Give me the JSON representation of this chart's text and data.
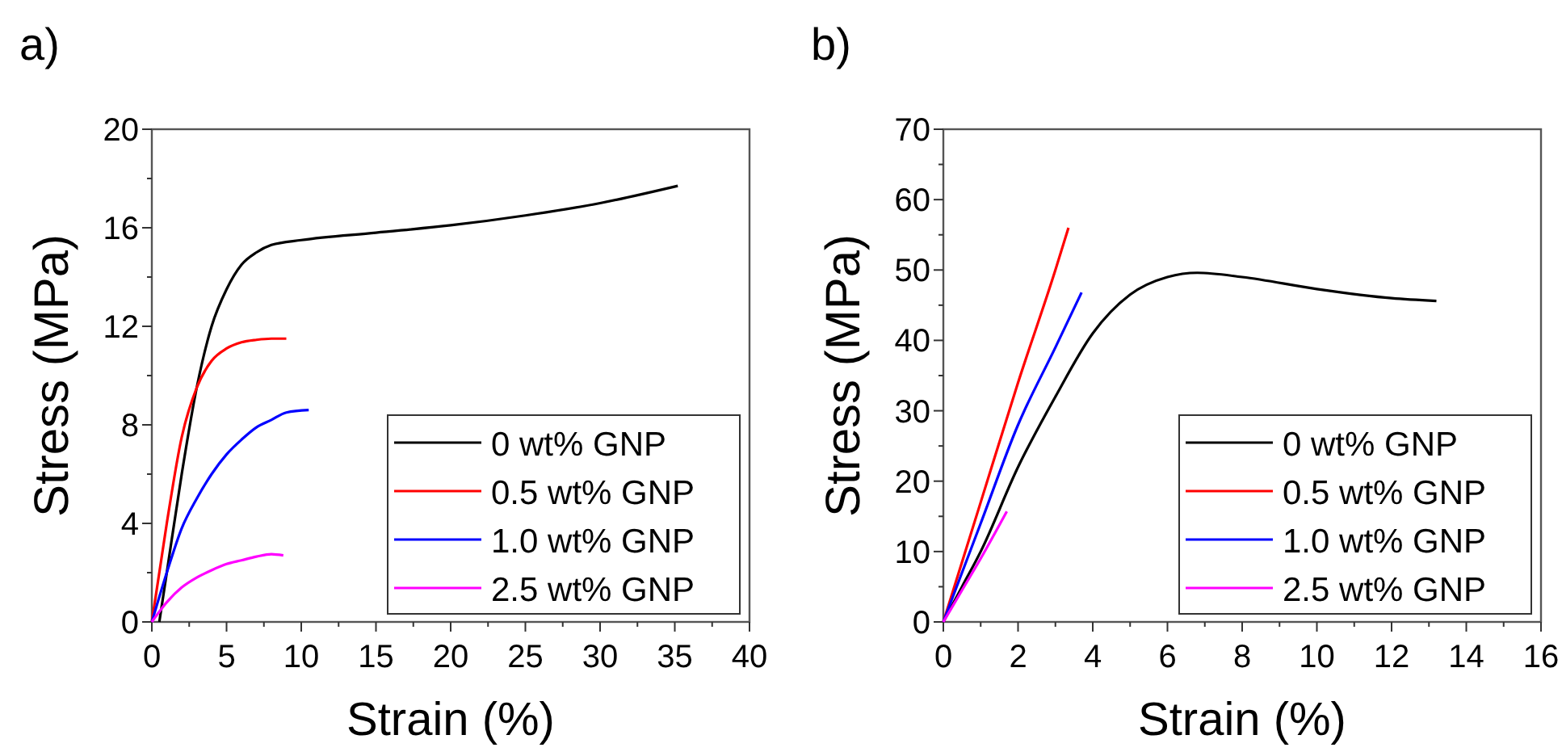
{
  "chart_data": [
    {
      "type": "line",
      "title": "a)",
      "xlabel": "Strain (%)",
      "ylabel": "Stress (MPa)",
      "xlim": [
        0,
        40
      ],
      "ylim": [
        0,
        20
      ],
      "xticks": [
        0,
        {
          "value": 2.5,
          "label": null
        },
        5,
        {
          "value": 7.5,
          "label": null
        },
        10,
        {
          "value": 12.5,
          "label": null
        },
        15,
        {
          "value": 17.5,
          "label": null
        },
        20,
        {
          "value": 22.5,
          "label": null
        },
        25,
        {
          "value": 27.5,
          "label": null
        },
        30,
        {
          "value": 32.5,
          "label": null
        },
        35,
        {
          "value": 37.5,
          "label": null
        },
        40
      ],
      "yticks": [
        0,
        {
          "value": 2,
          "label": null
        },
        4,
        {
          "value": 6,
          "label": null
        },
        8,
        {
          "value": 10,
          "label": null
        },
        12,
        {
          "value": 14,
          "label": null
        },
        16,
        {
          "value": 18,
          "label": null
        },
        20
      ],
      "legend": "bottom right",
      "grid": false,
      "marker": "none",
      "line_style": "solid",
      "series": [
        {
          "name": "0 wt% GNP",
          "color": "#000000",
          "x": [
            0.5,
            1,
            2,
            3,
            4,
            5,
            6,
            7,
            8,
            10,
            15,
            20,
            25,
            30,
            35.2
          ],
          "values": [
            0,
            2,
            6,
            9.5,
            12,
            13.5,
            14.5,
            15,
            15.3,
            15.5,
            15.8,
            16.1,
            16.5,
            17,
            17.7
          ]
        },
        {
          "name": "0.5 wt% GNP",
          "color": "#ff0000",
          "x": [
            0,
            1,
            2,
            3,
            4,
            5,
            6,
            7,
            8,
            9
          ],
          "values": [
            0,
            4,
            7.5,
            9.5,
            10.6,
            11.1,
            11.35,
            11.45,
            11.5,
            11.5
          ]
        },
        {
          "name": "1.0 wt% GNP",
          "color": "#0000ff",
          "x": [
            0,
            1,
            2,
            3,
            4,
            5,
            6,
            7,
            8,
            9,
            10.5
          ],
          "values": [
            0,
            2,
            3.8,
            5,
            6,
            6.8,
            7.4,
            7.9,
            8.2,
            8.5,
            8.6
          ]
        },
        {
          "name": "2.5 wt% GNP",
          "color": "#ff00ff",
          "x": [
            0,
            1,
            2,
            3,
            4,
            5,
            6,
            7,
            8,
            8.8
          ],
          "values": [
            0,
            0.8,
            1.4,
            1.8,
            2.1,
            2.35,
            2.5,
            2.65,
            2.75,
            2.7
          ]
        }
      ]
    },
    {
      "type": "line",
      "title": "b)",
      "xlabel": "Strain (%)",
      "ylabel": "Stress (MPa)",
      "xlim": [
        0,
        16
      ],
      "ylim": [
        0,
        70
      ],
      "xticks": [
        0,
        {
          "value": 1,
          "label": null
        },
        2,
        {
          "value": 3,
          "label": null
        },
        4,
        {
          "value": 5,
          "label": null
        },
        6,
        {
          "value": 7,
          "label": null
        },
        8,
        {
          "value": 9,
          "label": null
        },
        10,
        {
          "value": 11,
          "label": null
        },
        12,
        {
          "value": 13,
          "label": null
        },
        14,
        {
          "value": 15,
          "label": null
        },
        16
      ],
      "yticks": [
        0,
        {
          "value": 5,
          "label": null
        },
        10,
        {
          "value": 15,
          "label": null
        },
        20,
        {
          "value": 25,
          "label": null
        },
        30,
        {
          "value": 35,
          "label": null
        },
        40,
        {
          "value": 45,
          "label": null
        },
        50,
        {
          "value": 55,
          "label": null
        },
        60,
        {
          "value": 65,
          "label": null
        },
        70
      ],
      "legend": "bottom right",
      "grid": false,
      "marker": "none",
      "line_style": "solid",
      "series": [
        {
          "name": "0 wt% GNP",
          "color": "#000000",
          "x": [
            0,
            0.5,
            1,
            2,
            3,
            4,
            5,
            6,
            6.8,
            8,
            10,
            12,
            13.2
          ],
          "values": [
            0,
            5,
            10,
            22,
            32,
            41,
            46.5,
            49,
            49.6,
            49,
            47.3,
            46,
            45.6
          ]
        },
        {
          "name": "0.5 wt% GNP",
          "color": "#ff0000",
          "x": [
            0,
            1,
            2,
            3,
            3.35
          ],
          "values": [
            0,
            17,
            34,
            50,
            56
          ]
        },
        {
          "name": "1.0 wt% GNP",
          "color": "#0000ff",
          "x": [
            0,
            1,
            2,
            3,
            3.7
          ],
          "values": [
            0,
            14,
            28,
            39,
            46.8
          ]
        },
        {
          "name": "2.5 wt% GNP",
          "color": "#ff00ff",
          "x": [
            0,
            0.5,
            1,
            1.7
          ],
          "values": [
            0,
            4.5,
            9,
            15.7
          ]
        }
      ]
    }
  ]
}
